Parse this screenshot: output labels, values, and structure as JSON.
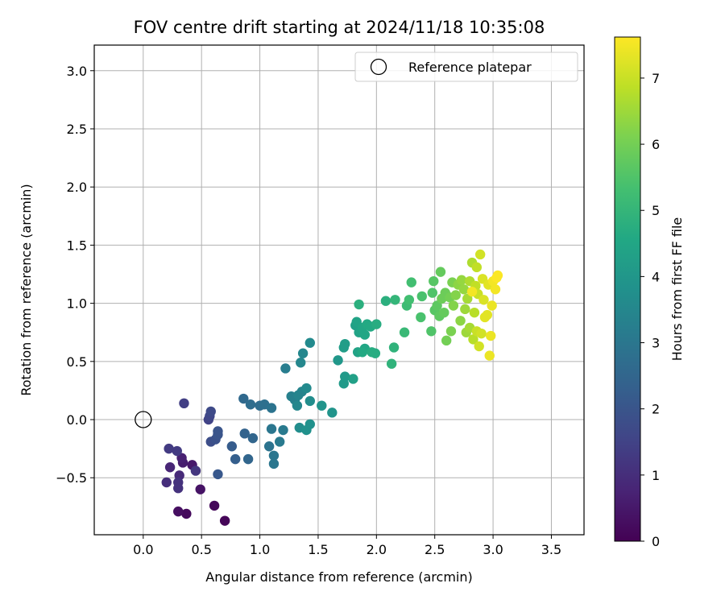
{
  "chart_data": {
    "type": "scatter",
    "title": "FOV centre drift starting at 2024/11/18 10:35:08",
    "xlabel": "Angular distance from reference (arcmin)",
    "ylabel": "Rotation from reference (arcmin)",
    "xlim": [
      -0.42,
      3.78
    ],
    "ylim": [
      -0.99,
      3.22
    ],
    "xticks": [
      0.0,
      0.5,
      1.0,
      1.5,
      2.0,
      2.5,
      3.0,
      3.5
    ],
    "xtick_labels": [
      "0.0",
      "0.5",
      "1.0",
      "1.5",
      "2.0",
      "2.5",
      "3.0",
      "3.5"
    ],
    "yticks": [
      -0.5,
      0.0,
      0.5,
      1.0,
      1.5,
      2.0,
      2.5,
      3.0
    ],
    "ytick_labels": [
      "−0.5",
      "0.0",
      "0.5",
      "1.0",
      "1.5",
      "2.0",
      "2.5",
      "3.0"
    ],
    "grid": true,
    "legend": {
      "position": "top-right",
      "entries": [
        {
          "label": "Reference platepar",
          "marker": "open-circle"
        }
      ]
    },
    "reference_point": {
      "x": 0.0,
      "y": 0.0
    },
    "colorbar": {
      "label": "Hours from first FF file",
      "colormap": "viridis",
      "range": [
        0,
        7.62
      ],
      "ticks": [
        0,
        1,
        2,
        3,
        4,
        5,
        6,
        7
      ],
      "tick_labels": [
        "0",
        "1",
        "2",
        "3",
        "4",
        "5",
        "6",
        "7"
      ]
    },
    "points": [
      {
        "x": 0.7,
        "y": -0.87,
        "h": 0.1
      },
      {
        "x": 0.37,
        "y": -0.81,
        "h": 0.2
      },
      {
        "x": 0.3,
        "y": -0.79,
        "h": 0.3
      },
      {
        "x": 0.61,
        "y": -0.74,
        "h": 0.15
      },
      {
        "x": 0.49,
        "y": -0.6,
        "h": 0.4
      },
      {
        "x": 0.42,
        "y": -0.39,
        "h": 0.5
      },
      {
        "x": 0.34,
        "y": -0.37,
        "h": 0.6
      },
      {
        "x": 0.33,
        "y": -0.33,
        "h": 0.7
      },
      {
        "x": 0.23,
        "y": -0.41,
        "h": 0.8
      },
      {
        "x": 0.31,
        "y": -0.48,
        "h": 0.9
      },
      {
        "x": 0.2,
        "y": -0.54,
        "h": 1.0
      },
      {
        "x": 0.3,
        "y": -0.54,
        "h": 1.1
      },
      {
        "x": 0.3,
        "y": -0.59,
        "h": 1.1
      },
      {
        "x": 0.45,
        "y": -0.44,
        "h": 1.2
      },
      {
        "x": 0.29,
        "y": -0.27,
        "h": 1.3
      },
      {
        "x": 0.22,
        "y": -0.25,
        "h": 1.3
      },
      {
        "x": 0.35,
        "y": 0.14,
        "h": 1.4
      },
      {
        "x": 0.56,
        "y": 0.0,
        "h": 1.5
      },
      {
        "x": 0.57,
        "y": 0.03,
        "h": 1.6
      },
      {
        "x": 0.58,
        "y": 0.07,
        "h": 1.7
      },
      {
        "x": 0.58,
        "y": -0.19,
        "h": 1.8
      },
      {
        "x": 0.62,
        "y": -0.17,
        "h": 1.9
      },
      {
        "x": 0.64,
        "y": -0.13,
        "h": 2.0
      },
      {
        "x": 0.64,
        "y": -0.1,
        "h": 2.0
      },
      {
        "x": 0.64,
        "y": -0.47,
        "h": 2.1
      },
      {
        "x": 0.76,
        "y": -0.23,
        "h": 2.2
      },
      {
        "x": 0.79,
        "y": -0.34,
        "h": 2.3
      },
      {
        "x": 0.87,
        "y": -0.12,
        "h": 2.4
      },
      {
        "x": 0.9,
        "y": -0.34,
        "h": 2.5
      },
      {
        "x": 0.94,
        "y": -0.16,
        "h": 2.5
      },
      {
        "x": 0.86,
        "y": 0.18,
        "h": 2.6
      },
      {
        "x": 0.92,
        "y": 0.13,
        "h": 2.7
      },
      {
        "x": 1.0,
        "y": 0.12,
        "h": 2.7
      },
      {
        "x": 1.04,
        "y": 0.13,
        "h": 2.8
      },
      {
        "x": 1.1,
        "y": 0.1,
        "h": 2.9
      },
      {
        "x": 1.08,
        "y": -0.23,
        "h": 2.9
      },
      {
        "x": 1.1,
        "y": -0.08,
        "h": 3.0
      },
      {
        "x": 1.12,
        "y": -0.31,
        "h": 3.0
      },
      {
        "x": 1.12,
        "y": -0.38,
        "h": 3.0
      },
      {
        "x": 1.17,
        "y": -0.19,
        "h": 3.1
      },
      {
        "x": 1.2,
        "y": -0.09,
        "h": 3.1
      },
      {
        "x": 1.22,
        "y": 0.44,
        "h": 3.2
      },
      {
        "x": 1.27,
        "y": 0.2,
        "h": 3.3
      },
      {
        "x": 1.3,
        "y": 0.17,
        "h": 3.3
      },
      {
        "x": 1.33,
        "y": 0.21,
        "h": 3.4
      },
      {
        "x": 1.36,
        "y": 0.24,
        "h": 3.4
      },
      {
        "x": 1.32,
        "y": 0.12,
        "h": 3.5
      },
      {
        "x": 1.35,
        "y": 0.49,
        "h": 3.5
      },
      {
        "x": 1.37,
        "y": 0.57,
        "h": 3.5
      },
      {
        "x": 1.43,
        "y": 0.66,
        "h": 3.6
      },
      {
        "x": 1.4,
        "y": 0.27,
        "h": 3.6
      },
      {
        "x": 1.43,
        "y": 0.16,
        "h": 3.7
      },
      {
        "x": 1.34,
        "y": -0.07,
        "h": 3.7
      },
      {
        "x": 1.4,
        "y": -0.09,
        "h": 3.8
      },
      {
        "x": 1.43,
        "y": -0.04,
        "h": 3.8
      },
      {
        "x": 1.53,
        "y": 0.12,
        "h": 3.9
      },
      {
        "x": 1.62,
        "y": 0.06,
        "h": 3.9
      },
      {
        "x": 1.67,
        "y": 0.51,
        "h": 4.0
      },
      {
        "x": 1.72,
        "y": 0.31,
        "h": 4.1
      },
      {
        "x": 1.73,
        "y": 0.37,
        "h": 4.1
      },
      {
        "x": 1.72,
        "y": 0.62,
        "h": 4.2
      },
      {
        "x": 1.73,
        "y": 0.65,
        "h": 4.2
      },
      {
        "x": 1.8,
        "y": 0.35,
        "h": 4.3
      },
      {
        "x": 1.82,
        "y": 0.81,
        "h": 4.3
      },
      {
        "x": 1.85,
        "y": 0.75,
        "h": 4.4
      },
      {
        "x": 1.83,
        "y": 0.84,
        "h": 4.4
      },
      {
        "x": 1.84,
        "y": 0.58,
        "h": 4.4
      },
      {
        "x": 1.88,
        "y": 0.79,
        "h": 4.5
      },
      {
        "x": 1.9,
        "y": 0.73,
        "h": 4.5
      },
      {
        "x": 1.9,
        "y": 0.61,
        "h": 4.5
      },
      {
        "x": 1.88,
        "y": 0.58,
        "h": 4.6
      },
      {
        "x": 1.92,
        "y": 0.82,
        "h": 4.6
      },
      {
        "x": 1.95,
        "y": 0.8,
        "h": 4.6
      },
      {
        "x": 1.96,
        "y": 0.58,
        "h": 4.7
      },
      {
        "x": 1.99,
        "y": 0.57,
        "h": 4.7
      },
      {
        "x": 2.0,
        "y": 0.82,
        "h": 4.7
      },
      {
        "x": 1.85,
        "y": 0.99,
        "h": 4.8
      },
      {
        "x": 2.08,
        "y": 1.02,
        "h": 4.8
      },
      {
        "x": 2.13,
        "y": 0.48,
        "h": 4.9
      },
      {
        "x": 2.15,
        "y": 0.62,
        "h": 4.9
      },
      {
        "x": 2.16,
        "y": 1.03,
        "h": 5.0
      },
      {
        "x": 2.24,
        "y": 0.75,
        "h": 5.1
      },
      {
        "x": 2.26,
        "y": 0.98,
        "h": 5.2
      },
      {
        "x": 2.28,
        "y": 1.03,
        "h": 5.3
      },
      {
        "x": 2.3,
        "y": 1.18,
        "h": 5.3
      },
      {
        "x": 2.38,
        "y": 0.88,
        "h": 5.4
      },
      {
        "x": 2.39,
        "y": 1.06,
        "h": 5.4
      },
      {
        "x": 2.47,
        "y": 0.76,
        "h": 5.5
      },
      {
        "x": 2.48,
        "y": 1.09,
        "h": 5.5
      },
      {
        "x": 2.49,
        "y": 1.19,
        "h": 5.6
      },
      {
        "x": 2.5,
        "y": 0.94,
        "h": 5.6
      },
      {
        "x": 2.52,
        "y": 0.98,
        "h": 5.7
      },
      {
        "x": 2.54,
        "y": 0.89,
        "h": 5.7
      },
      {
        "x": 2.55,
        "y": 1.27,
        "h": 5.8
      },
      {
        "x": 2.58,
        "y": 0.92,
        "h": 5.8
      },
      {
        "x": 2.56,
        "y": 1.04,
        "h": 5.9
      },
      {
        "x": 2.59,
        "y": 1.09,
        "h": 5.9
      },
      {
        "x": 2.6,
        "y": 0.68,
        "h": 6.0
      },
      {
        "x": 2.63,
        "y": 1.05,
        "h": 6.0
      },
      {
        "x": 2.64,
        "y": 0.76,
        "h": 6.1
      },
      {
        "x": 2.65,
        "y": 1.18,
        "h": 6.1
      },
      {
        "x": 2.66,
        "y": 0.98,
        "h": 6.2
      },
      {
        "x": 2.68,
        "y": 1.07,
        "h": 6.2
      },
      {
        "x": 2.7,
        "y": 1.16,
        "h": 6.3
      },
      {
        "x": 2.72,
        "y": 0.85,
        "h": 6.3
      },
      {
        "x": 2.73,
        "y": 1.2,
        "h": 6.4
      },
      {
        "x": 2.75,
        "y": 1.12,
        "h": 6.4
      },
      {
        "x": 2.76,
        "y": 0.95,
        "h": 6.5
      },
      {
        "x": 2.77,
        "y": 0.75,
        "h": 6.5
      },
      {
        "x": 2.78,
        "y": 1.04,
        "h": 6.6
      },
      {
        "x": 2.8,
        "y": 0.79,
        "h": 6.6
      },
      {
        "x": 2.8,
        "y": 1.19,
        "h": 6.7
      },
      {
        "x": 2.82,
        "y": 1.35,
        "h": 6.7
      },
      {
        "x": 2.83,
        "y": 0.69,
        "h": 6.8
      },
      {
        "x": 2.84,
        "y": 0.92,
        "h": 6.8
      },
      {
        "x": 2.85,
        "y": 1.15,
        "h": 6.9
      },
      {
        "x": 2.86,
        "y": 1.31,
        "h": 6.9
      },
      {
        "x": 2.86,
        "y": 0.76,
        "h": 7.0
      },
      {
        "x": 2.87,
        "y": 1.08,
        "h": 7.0
      },
      {
        "x": 2.88,
        "y": 0.63,
        "h": 7.1
      },
      {
        "x": 2.89,
        "y": 1.42,
        "h": 7.1
      },
      {
        "x": 2.9,
        "y": 0.74,
        "h": 7.1
      },
      {
        "x": 2.91,
        "y": 1.21,
        "h": 7.2
      },
      {
        "x": 2.92,
        "y": 1.03,
        "h": 7.2
      },
      {
        "x": 2.93,
        "y": 0.88,
        "h": 7.3
      },
      {
        "x": 2.95,
        "y": 0.9,
        "h": 7.3
      },
      {
        "x": 2.96,
        "y": 1.16,
        "h": 7.3
      },
      {
        "x": 2.97,
        "y": 0.55,
        "h": 7.4
      },
      {
        "x": 2.98,
        "y": 0.72,
        "h": 7.4
      },
      {
        "x": 2.99,
        "y": 0.98,
        "h": 7.4
      },
      {
        "x": 3.0,
        "y": 1.19,
        "h": 7.5
      },
      {
        "x": 3.02,
        "y": 1.12,
        "h": 7.5
      },
      {
        "x": 3.04,
        "y": 1.24,
        "h": 7.6
      },
      {
        "x": 3.03,
        "y": 1.22,
        "h": 7.6
      },
      {
        "x": 2.82,
        "y": 1.1,
        "h": 7.5
      }
    ]
  }
}
